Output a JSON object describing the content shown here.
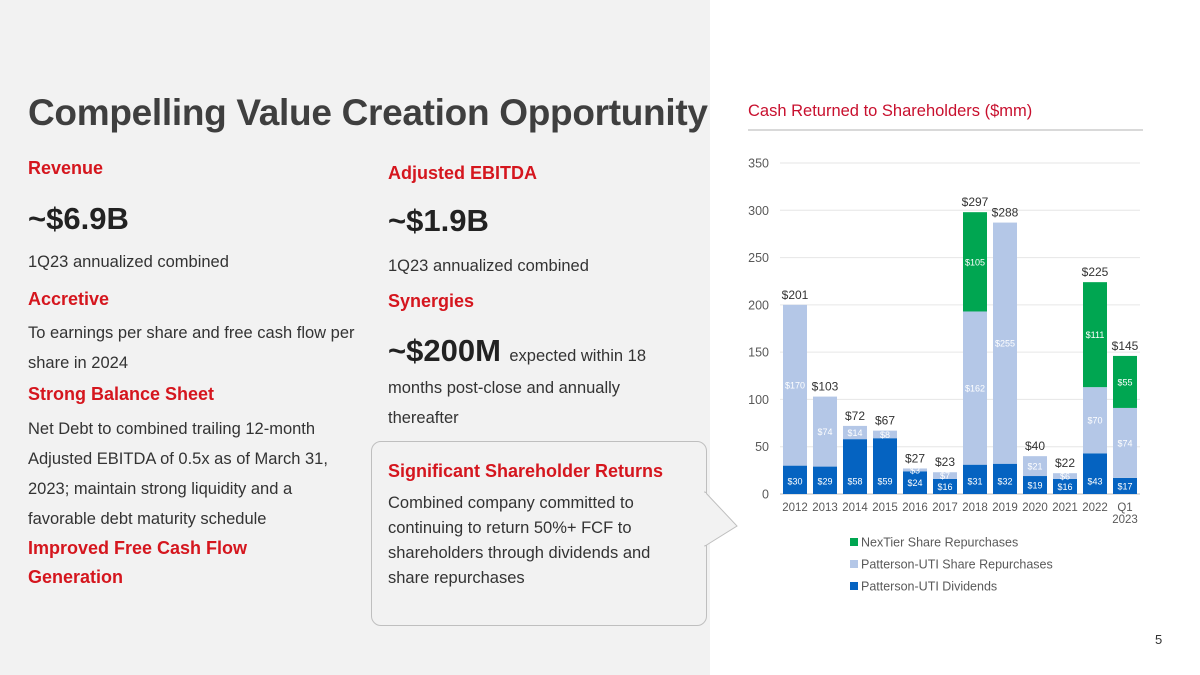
{
  "title": "Compelling Value Creation Opportunity",
  "revenue": {
    "label": "Revenue",
    "value": "~$6.9B",
    "desc": "1Q23 annualized combined"
  },
  "ebitda": {
    "label": "Adjusted EBITDA",
    "value": "~$1.9B",
    "desc": "1Q23 annualized combined"
  },
  "accretive": {
    "label": "Accretive",
    "desc": "To earnings per share and free cash flow per share in 2024"
  },
  "synergies": {
    "label": "Synergies",
    "value": "~$200M",
    "desc_inline": "expected within 18",
    "desc_rest": "months post-close and annually thereafter"
  },
  "balance": {
    "label": "Strong Balance Sheet",
    "desc": "Net Debt to combined trailing 12-month Adjusted EBITDA of 0.5x as of March 31, 2023; maintain strong liquidity and a favorable debt maturity schedule"
  },
  "fcf": {
    "label": "Improved Free Cash Flow Generation"
  },
  "returns": {
    "label": "Significant Shareholder Returns",
    "desc": "Combined company committed to continuing to return 50%+ FCF to shareholders through dividends and share repurchases"
  },
  "page_number": "5",
  "colors": {
    "accent_red": "#d5161e",
    "dividends": "#0563c1",
    "pu_repurchases": "#b4c7e7",
    "nextier": "#00a651"
  },
  "chart_data": {
    "type": "bar",
    "stacked": true,
    "title": "Cash Returned to Shareholders ($mm)",
    "categories": [
      "2012",
      "2013",
      "2014",
      "2015",
      "2016",
      "2017",
      "2018",
      "2019",
      "2020",
      "2021",
      "2022",
      "Q1 2023"
    ],
    "series": [
      {
        "name": "Patterson-UTI Dividends",
        "values": [
          30,
          29,
          58,
          59,
          24,
          16,
          31,
          32,
          19,
          16,
          43,
          17
        ],
        "labels": [
          "$30",
          "$29",
          "$58",
          "$59",
          "$24",
          "$16",
          "$31",
          "$32",
          "$19",
          "$16",
          "$43",
          "$17"
        ]
      },
      {
        "name": "Patterson-UTI Share Repurchases",
        "values": [
          170,
          74,
          14,
          8,
          3,
          7,
          162,
          255,
          21,
          6,
          70,
          74
        ],
        "labels": [
          "$170",
          "$74",
          "$14",
          "$8",
          "$3",
          "$7",
          "$162",
          "$255",
          "$21",
          "$6",
          "$70",
          "$74"
        ]
      },
      {
        "name": "NexTier Share Repurchases",
        "values": [
          0,
          0,
          0,
          0,
          0,
          0,
          105,
          0,
          0,
          0,
          111,
          55
        ],
        "labels": [
          "",
          "",
          "",
          "",
          "",
          "",
          "$105",
          "",
          "",
          "",
          "$111",
          "$55"
        ]
      }
    ],
    "totals": [
      "$201",
      "$103",
      "$72",
      "$67",
      "$27",
      "$23",
      "$297",
      "$288",
      "$40",
      "$22",
      "$225",
      "$145"
    ],
    "ylim": [
      0,
      350
    ],
    "yticks": [
      0,
      50,
      100,
      150,
      200,
      250,
      300,
      350
    ],
    "legend": [
      "NexTier Share Repurchases",
      "Patterson-UTI Share Repurchases",
      "Patterson-UTI Dividends"
    ],
    "legend_position": "bottom"
  }
}
